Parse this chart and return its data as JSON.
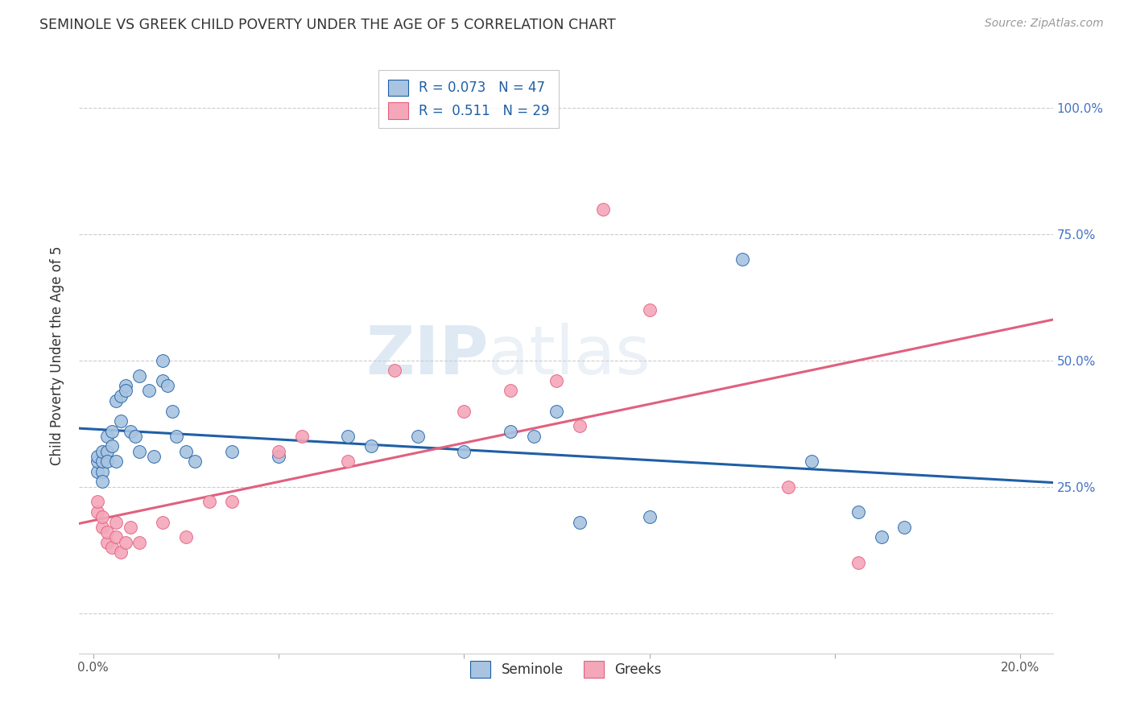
{
  "title": "SEMINOLE VS GREEK CHILD POVERTY UNDER THE AGE OF 5 CORRELATION CHART",
  "source": "Source: ZipAtlas.com",
  "ylabel_label": "Child Poverty Under the Age of 5",
  "legend1_label": "R = 0.073   N = 47",
  "legend2_label": "R =  0.511   N = 29",
  "seminole_color": "#a8c4e0",
  "greek_color": "#f4a7b9",
  "seminole_line_color": "#1f5fa6",
  "greek_line_color": "#e0607e",
  "watermark_zip": "ZIP",
  "watermark_atlas": "atlas",
  "seminole_x": [
    0.001,
    0.001,
    0.001,
    0.002,
    0.002,
    0.002,
    0.002,
    0.003,
    0.003,
    0.003,
    0.004,
    0.004,
    0.005,
    0.005,
    0.006,
    0.006,
    0.007,
    0.007,
    0.008,
    0.009,
    0.01,
    0.01,
    0.012,
    0.013,
    0.015,
    0.015,
    0.016,
    0.017,
    0.018,
    0.02,
    0.022,
    0.03,
    0.04,
    0.055,
    0.06,
    0.07,
    0.08,
    0.09,
    0.095,
    0.1,
    0.105,
    0.12,
    0.14,
    0.155,
    0.165,
    0.17,
    0.175
  ],
  "seminole_y": [
    0.28,
    0.3,
    0.31,
    0.28,
    0.3,
    0.32,
    0.26,
    0.35,
    0.32,
    0.3,
    0.36,
    0.33,
    0.42,
    0.3,
    0.43,
    0.38,
    0.45,
    0.44,
    0.36,
    0.35,
    0.47,
    0.32,
    0.44,
    0.31,
    0.5,
    0.46,
    0.45,
    0.4,
    0.35,
    0.32,
    0.3,
    0.32,
    0.31,
    0.35,
    0.33,
    0.35,
    0.32,
    0.36,
    0.35,
    0.4,
    0.18,
    0.19,
    0.7,
    0.3,
    0.2,
    0.15,
    0.17
  ],
  "greek_x": [
    0.001,
    0.001,
    0.002,
    0.002,
    0.003,
    0.003,
    0.004,
    0.005,
    0.005,
    0.006,
    0.007,
    0.008,
    0.01,
    0.015,
    0.02,
    0.025,
    0.03,
    0.04,
    0.045,
    0.055,
    0.065,
    0.08,
    0.09,
    0.1,
    0.105,
    0.11,
    0.12,
    0.15,
    0.165
  ],
  "greek_y": [
    0.2,
    0.22,
    0.17,
    0.19,
    0.14,
    0.16,
    0.13,
    0.15,
    0.18,
    0.12,
    0.14,
    0.17,
    0.14,
    0.18,
    0.15,
    0.22,
    0.22,
    0.32,
    0.35,
    0.3,
    0.48,
    0.4,
    0.44,
    0.46,
    0.37,
    0.8,
    0.6,
    0.25,
    0.1
  ],
  "xlim": [
    -0.003,
    0.207
  ],
  "ylim": [
    -0.08,
    1.1
  ],
  "x_tick_positions": [
    0.0,
    0.04,
    0.08,
    0.12,
    0.16,
    0.2
  ],
  "x_tick_labels": [
    "0.0%",
    "",
    "",
    "",
    "",
    "20.0%"
  ],
  "y_tick_positions": [
    0.0,
    0.25,
    0.5,
    0.75,
    1.0
  ],
  "y_tick_labels_right": [
    "",
    "25.0%",
    "50.0%",
    "75.0%",
    "100.0%"
  ],
  "figsize": [
    14.06,
    8.92
  ],
  "dpi": 100
}
